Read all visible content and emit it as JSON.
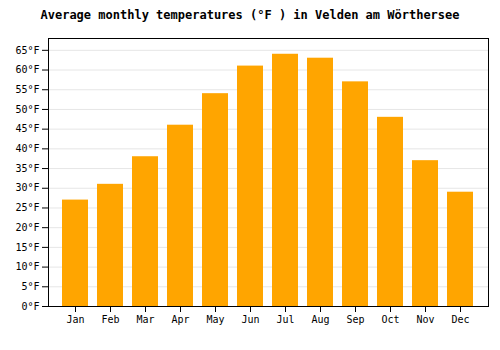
{
  "chart_data": {
    "type": "bar",
    "title": "Average monthly temperatures (°F ) in Velden am Wörthersee",
    "categories": [
      "Jan",
      "Feb",
      "Mar",
      "Apr",
      "May",
      "Jun",
      "Jul",
      "Aug",
      "Sep",
      "Oct",
      "Nov",
      "Dec"
    ],
    "values": [
      27,
      31,
      38,
      46,
      54,
      61,
      64,
      63,
      57,
      48,
      37,
      29
    ],
    "color": "#FFA500",
    "ylim": [
      0,
      68
    ],
    "yticks": [
      {
        "value": 0,
        "label": "0°F"
      },
      {
        "value": 5,
        "label": "5°F"
      },
      {
        "value": 10,
        "label": "10°F"
      },
      {
        "value": 15,
        "label": "15°F"
      },
      {
        "value": 20,
        "label": "20°F"
      },
      {
        "value": 25,
        "label": "25°F"
      },
      {
        "value": 30,
        "label": "30°F"
      },
      {
        "value": 35,
        "label": "35°F"
      },
      {
        "value": 40,
        "label": "40°F"
      },
      {
        "value": 45,
        "label": "45°F"
      },
      {
        "value": 50,
        "label": "50°F"
      },
      {
        "value": 55,
        "label": "55°F"
      },
      {
        "value": 60,
        "label": "60°F"
      },
      {
        "value": 65,
        "label": "65°F"
      }
    ],
    "grid": true
  }
}
